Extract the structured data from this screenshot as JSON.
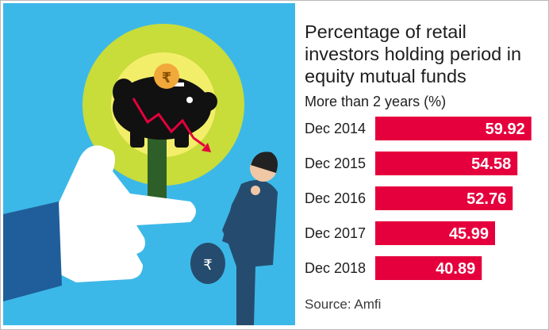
{
  "chart_data": {
    "type": "bar",
    "orientation": "horizontal",
    "title": "Percentage of retail investors holding period in equity mutual funds",
    "subtitle": "More than 2 years (%)",
    "categories": [
      "Dec 2014",
      "Dec 2015",
      "Dec 2016",
      "Dec 2017",
      "Dec 2018"
    ],
    "values": [
      59.92,
      54.58,
      52.76,
      45.99,
      40.89
    ],
    "value_labels": [
      "59.92",
      "54.58",
      "52.76",
      "45.99",
      "40.89"
    ],
    "xlim": [
      0,
      60
    ],
    "bar_color": "#e5003d",
    "grid": false,
    "legend": "none"
  },
  "source": "Source:  Amfi",
  "illustration": {
    "coin_symbol": "₹",
    "bag_symbol": "₹",
    "colors": {
      "sky": "#3cb8e8",
      "halo_outer": "#c8dc3a",
      "halo_inner": "#f2ee6a",
      "piggy": "#111111",
      "coin": "#f2a93b",
      "stem": "#2f5f28",
      "hand": "#ffffff",
      "sleeve": "#1f5e9a",
      "suit": "#254c6e",
      "trend_line": "#e5003d"
    }
  }
}
